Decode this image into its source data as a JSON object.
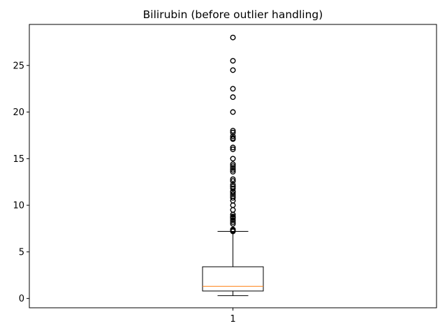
{
  "chart_data": {
    "type": "boxplot",
    "title": "Bilirubin (before outlier handling)",
    "xlabel": "",
    "ylabel": "",
    "categories": [
      "1"
    ],
    "ylim": [
      -1.0,
      29.4
    ],
    "yticks": [
      0,
      5,
      10,
      15,
      20,
      25
    ],
    "grid": false,
    "legend": "none",
    "boxes": [
      {
        "category": "1",
        "whisker_low": 0.3,
        "q1": 0.8,
        "median": 1.3,
        "q3": 3.4,
        "whisker_high": 7.2,
        "outliers": [
          7.2,
          7.3,
          7.4,
          8.0,
          8.2,
          8.4,
          8.6,
          8.7,
          8.8,
          9.0,
          9.5,
          10.0,
          10.5,
          10.8,
          11.0,
          11.2,
          11.4,
          11.5,
          11.8,
          12.0,
          12.2,
          12.6,
          12.8,
          13.6,
          13.8,
          14.0,
          14.2,
          14.4,
          15.0,
          16.0,
          16.2,
          17.1,
          17.2,
          17.4,
          17.8,
          18.0,
          20.0,
          21.6,
          22.5,
          24.5,
          25.5,
          28.0
        ]
      }
    ],
    "colors": {
      "box": "#000000",
      "median": "#ff7f0e",
      "whisker": "#000000",
      "flier": "#000000"
    }
  }
}
